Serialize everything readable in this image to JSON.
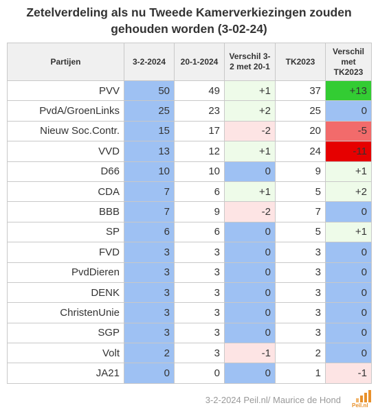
{
  "header": {
    "title_lines": [
      "Zetelverdeling als nu Tweede Kamerverkiezingen zouden",
      "gehouden worden (3-02-24)"
    ]
  },
  "table": {
    "columns": [
      "Partijen",
      "3-2-2024",
      "20-1-2024",
      "Verschil 3-2 met 20-1",
      "TK2023",
      "Verschil met TK2023"
    ],
    "rows": [
      [
        "PVV",
        "50",
        "49",
        "+1",
        "37",
        "+13"
      ],
      [
        "PvdA/GroenLinks",
        "25",
        "23",
        "+2",
        "25",
        "0"
      ],
      [
        "Nieuw Soc.Contr.",
        "15",
        "17",
        "-2",
        "20",
        "-5"
      ],
      [
        "VVD",
        "13",
        "12",
        "+1",
        "24",
        "-11"
      ],
      [
        "D66",
        "10",
        "10",
        "0",
        "9",
        "+1"
      ],
      [
        "CDA",
        "7",
        "6",
        "+1",
        "5",
        "+2"
      ],
      [
        "BBB",
        "7",
        "9",
        "-2",
        "7",
        "0"
      ],
      [
        "SP",
        "6",
        "6",
        "0",
        "5",
        "+1"
      ],
      [
        "FVD",
        "3",
        "3",
        "0",
        "3",
        "0"
      ],
      [
        "PvdDieren",
        "3",
        "3",
        "0",
        "3",
        "0"
      ],
      [
        "DENK",
        "3",
        "3",
        "0",
        "3",
        "0"
      ],
      [
        "ChristenUnie",
        "3",
        "3",
        "0",
        "3",
        "0"
      ],
      [
        "SGP",
        "3",
        "3",
        "0",
        "3",
        "0"
      ],
      [
        "Volt",
        "2",
        "3",
        "-1",
        "2",
        "0"
      ],
      [
        "JA21",
        "0",
        "0",
        "0",
        "1",
        "-1"
      ]
    ]
  },
  "footer": {
    "source": "3-2-2024 Peil.nl/ Maurice de Hond",
    "logo": "Peil.nl"
  }
}
